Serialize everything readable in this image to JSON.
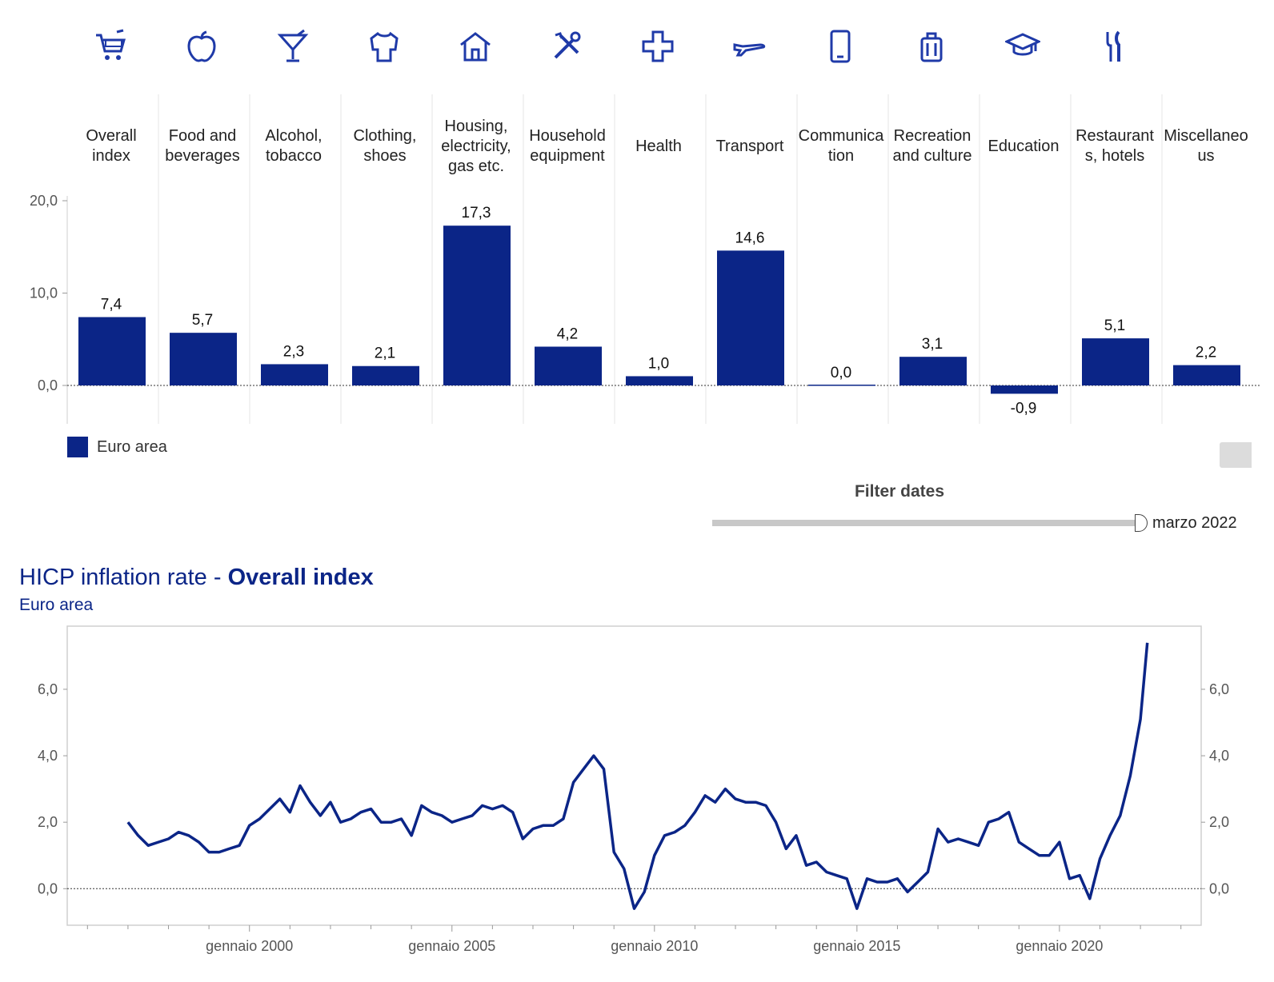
{
  "colors": {
    "bar": "#0b2587",
    "line": "#0b2587",
    "icon": "#1f3aa8",
    "grid": "#e6e6e6"
  },
  "categories": [
    {
      "label_lines": [
        "Overall",
        "index"
      ],
      "icon": "shopping-cart-icon"
    },
    {
      "label_lines": [
        "Food and",
        "beverages"
      ],
      "icon": "apple-icon"
    },
    {
      "label_lines": [
        "Alcohol,",
        "tobacco"
      ],
      "icon": "cocktail-glass-icon"
    },
    {
      "label_lines": [
        "Clothing,",
        "shoes"
      ],
      "icon": "shirt-icon"
    },
    {
      "label_lines": [
        "Housing,",
        "electricity,",
        "gas etc."
      ],
      "icon": "house-icon"
    },
    {
      "label_lines": [
        "Household",
        "equipment"
      ],
      "icon": "tools-icon"
    },
    {
      "label_lines": [
        "Health"
      ],
      "icon": "medical-cross-icon"
    },
    {
      "label_lines": [
        "Transport"
      ],
      "icon": "airplane-icon"
    },
    {
      "label_lines": [
        "Communica",
        "tion"
      ],
      "icon": "mobile-phone-icon"
    },
    {
      "label_lines": [
        "Recreation",
        "and culture"
      ],
      "icon": "suitcase-icon"
    },
    {
      "label_lines": [
        "Education"
      ],
      "icon": "graduation-cap-icon"
    },
    {
      "label_lines": [
        "Restaurant",
        "s, hotels"
      ],
      "icon": "cutlery-icon"
    },
    {
      "label_lines": [
        "Miscellaneo",
        "us"
      ],
      "icon": ""
    }
  ],
  "chart_data": [
    {
      "type": "bar",
      "categories": [
        "Overall index",
        "Food and beverages",
        "Alcohol, tobacco",
        "Clothing, shoes",
        "Housing, electricity, gas etc.",
        "Household equipment",
        "Health",
        "Transport",
        "Communication",
        "Recreation and culture",
        "Education",
        "Restaurants, hotels",
        "Miscellaneous"
      ],
      "series": [
        {
          "name": "Euro area",
          "values": [
            7.4,
            5.7,
            2.3,
            2.1,
            17.3,
            4.2,
            1.0,
            14.6,
            0.0,
            3.1,
            -0.9,
            5.1,
            2.2
          ]
        }
      ],
      "value_labels": [
        "7,4",
        "5,7",
        "2,3",
        "2,1",
        "17,3",
        "4,2",
        "1,0",
        "14,6",
        "0,0",
        "3,1",
        "-0,9",
        "5,1",
        "2,2"
      ],
      "yticks": [
        0,
        10,
        20
      ],
      "ytick_labels": [
        "0,0",
        "10,0",
        "20,0"
      ],
      "ylim": [
        -4,
        24
      ],
      "legend": "bottom-left",
      "grid": false
    },
    {
      "type": "line",
      "title": "HICP inflation rate - Overall index",
      "subtitle": "Euro area",
      "series": [
        {
          "name": "Euro area",
          "points": [
            [
              1997.0,
              2.0
            ],
            [
              1997.25,
              1.6
            ],
            [
              1997.5,
              1.3
            ],
            [
              1997.75,
              1.4
            ],
            [
              1998.0,
              1.5
            ],
            [
              1998.25,
              1.7
            ],
            [
              1998.5,
              1.6
            ],
            [
              1998.75,
              1.4
            ],
            [
              1999.0,
              1.1
            ],
            [
              1999.25,
              1.1
            ],
            [
              1999.5,
              1.2
            ],
            [
              1999.75,
              1.3
            ],
            [
              2000.0,
              1.9
            ],
            [
              2000.25,
              2.1
            ],
            [
              2000.5,
              2.4
            ],
            [
              2000.75,
              2.7
            ],
            [
              2001.0,
              2.3
            ],
            [
              2001.25,
              3.1
            ],
            [
              2001.5,
              2.6
            ],
            [
              2001.75,
              2.2
            ],
            [
              2002.0,
              2.6
            ],
            [
              2002.25,
              2.0
            ],
            [
              2002.5,
              2.1
            ],
            [
              2002.75,
              2.3
            ],
            [
              2003.0,
              2.4
            ],
            [
              2003.25,
              2.0
            ],
            [
              2003.5,
              2.0
            ],
            [
              2003.75,
              2.1
            ],
            [
              2004.0,
              1.6
            ],
            [
              2004.25,
              2.5
            ],
            [
              2004.5,
              2.3
            ],
            [
              2004.75,
              2.2
            ],
            [
              2005.0,
              2.0
            ],
            [
              2005.25,
              2.1
            ],
            [
              2005.5,
              2.2
            ],
            [
              2005.75,
              2.5
            ],
            [
              2006.0,
              2.4
            ],
            [
              2006.25,
              2.5
            ],
            [
              2006.5,
              2.3
            ],
            [
              2006.75,
              1.5
            ],
            [
              2007.0,
              1.8
            ],
            [
              2007.25,
              1.9
            ],
            [
              2007.5,
              1.9
            ],
            [
              2007.75,
              2.1
            ],
            [
              2008.0,
              3.2
            ],
            [
              2008.25,
              3.6
            ],
            [
              2008.5,
              4.0
            ],
            [
              2008.75,
              3.6
            ],
            [
              2009.0,
              1.1
            ],
            [
              2009.25,
              0.6
            ],
            [
              2009.5,
              -0.6
            ],
            [
              2009.75,
              -0.1
            ],
            [
              2010.0,
              1.0
            ],
            [
              2010.25,
              1.6
            ],
            [
              2010.5,
              1.7
            ],
            [
              2010.75,
              1.9
            ],
            [
              2011.0,
              2.3
            ],
            [
              2011.25,
              2.8
            ],
            [
              2011.5,
              2.6
            ],
            [
              2011.75,
              3.0
            ],
            [
              2012.0,
              2.7
            ],
            [
              2012.25,
              2.6
            ],
            [
              2012.5,
              2.6
            ],
            [
              2012.75,
              2.5
            ],
            [
              2013.0,
              2.0
            ],
            [
              2013.25,
              1.2
            ],
            [
              2013.5,
              1.6
            ],
            [
              2013.75,
              0.7
            ],
            [
              2014.0,
              0.8
            ],
            [
              2014.25,
              0.5
            ],
            [
              2014.5,
              0.4
            ],
            [
              2014.75,
              0.3
            ],
            [
              2015.0,
              -0.6
            ],
            [
              2015.25,
              0.3
            ],
            [
              2015.5,
              0.2
            ],
            [
              2015.75,
              0.2
            ],
            [
              2016.0,
              0.3
            ],
            [
              2016.25,
              -0.1
            ],
            [
              2016.5,
              0.2
            ],
            [
              2016.75,
              0.5
            ],
            [
              2017.0,
              1.8
            ],
            [
              2017.25,
              1.4
            ],
            [
              2017.5,
              1.5
            ],
            [
              2017.75,
              1.4
            ],
            [
              2018.0,
              1.3
            ],
            [
              2018.25,
              2.0
            ],
            [
              2018.5,
              2.1
            ],
            [
              2018.75,
              2.3
            ],
            [
              2019.0,
              1.4
            ],
            [
              2019.25,
              1.2
            ],
            [
              2019.5,
              1.0
            ],
            [
              2019.75,
              1.0
            ],
            [
              2020.0,
              1.4
            ],
            [
              2020.25,
              0.3
            ],
            [
              2020.5,
              0.4
            ],
            [
              2020.75,
              -0.3
            ],
            [
              2021.0,
              0.9
            ],
            [
              2021.25,
              1.6
            ],
            [
              2021.5,
              2.2
            ],
            [
              2021.75,
              3.4
            ],
            [
              2022.0,
              5.1
            ],
            [
              2022.17,
              7.4
            ]
          ]
        }
      ],
      "xtick_labels": [
        "gennaio 2000",
        "gennaio 2005",
        "gennaio 2010",
        "gennaio 2015",
        "gennaio 2020"
      ],
      "xticks": [
        2000,
        2005,
        2010,
        2015,
        2020
      ],
      "xlim": [
        1995.5,
        2023.5
      ],
      "yticks": [
        0,
        2,
        4,
        6
      ],
      "ytick_labels": [
        "0,0",
        "2,0",
        "4,0",
        "6,0"
      ],
      "ylim": [
        -1.1,
        7.9
      ],
      "grid": false
    }
  ],
  "legend": {
    "label": "Euro area"
  },
  "filter": {
    "title": "Filter dates",
    "value": "marzo 2022"
  },
  "line_chart_header": {
    "title_prefix": "HICP inflation rate - ",
    "title_bold": "Overall index",
    "subtitle": "Euro area"
  }
}
